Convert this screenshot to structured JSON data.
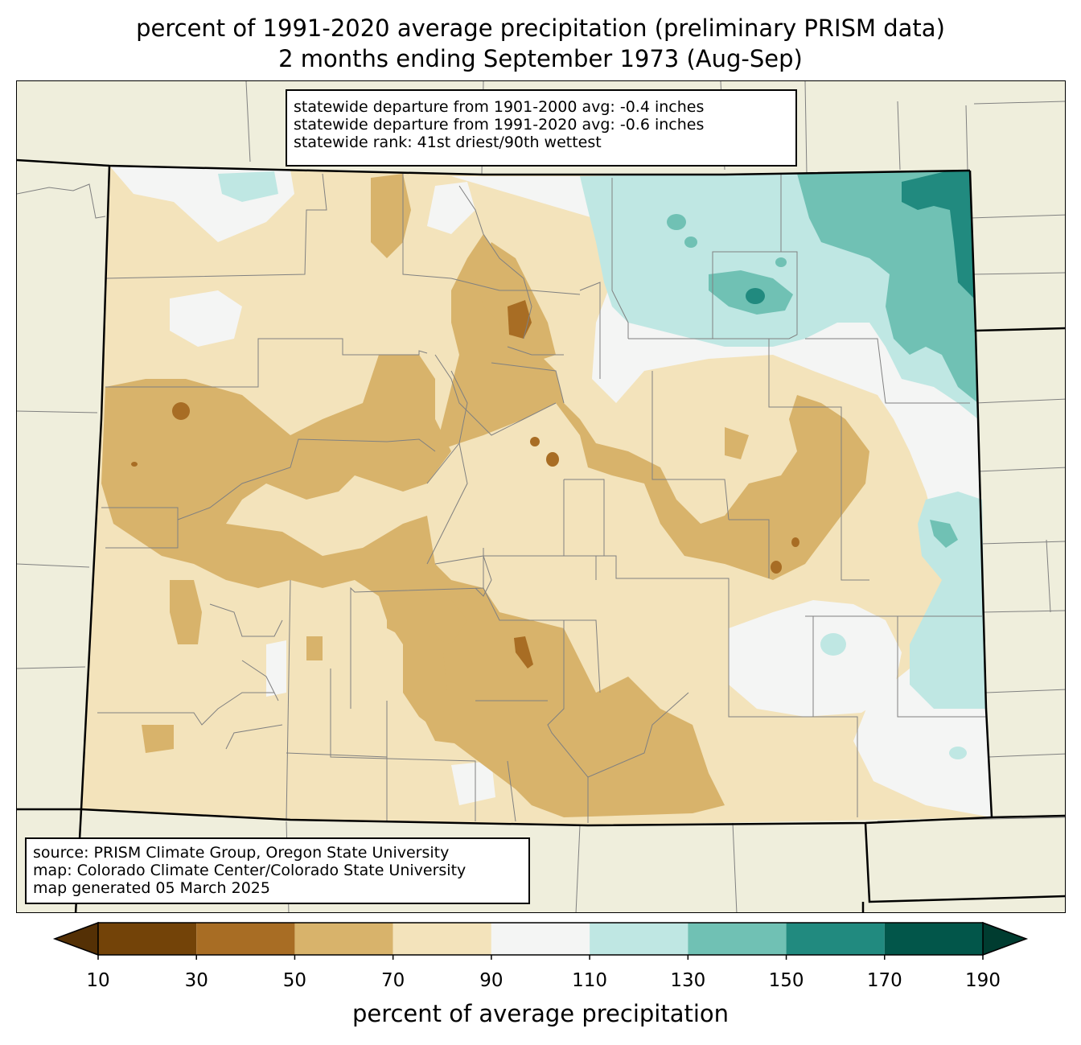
{
  "title": {
    "line1": "percent of 1991-2020 average precipitation (preliminary PRISM data)",
    "line2": "2 months ending September 1973 (Aug-Sep)"
  },
  "stats_box": {
    "line1": "statewide departure from 1901-2000 avg: -0.4 inches",
    "line2": "statewide departure from 1991-2020 avg: -0.6 inches",
    "line3": "statewide rank: 41st driest/90th wettest"
  },
  "source_box": {
    "line1": "source: PRISM Climate Group, Oregon State University",
    "line2": "map: Colorado Climate Center/Colorado State University",
    "line3": "map generated 05 March 2025"
  },
  "colorbar": {
    "label": "percent of average precipitation",
    "ticks": [
      "10",
      "30",
      "50",
      "70",
      "90",
      "110",
      "130",
      "150",
      "170",
      "190"
    ],
    "colors": [
      "#734308",
      "#a86d24",
      "#d8b36b",
      "#f3e3bb",
      "#f4f5f4",
      "#bfe7e3",
      "#70c1b4",
      "#218a7f",
      "#02564a"
    ],
    "under_color": "#543005",
    "over_color": "#003c30"
  },
  "map_colors": {
    "background": "#efeedc",
    "state_border": "#000000",
    "county_border": "#808080"
  }
}
